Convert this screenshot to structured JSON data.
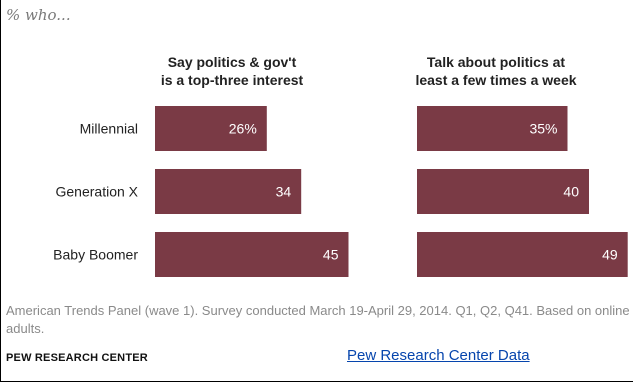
{
  "subtitle": "% who...",
  "panels": [
    {
      "title_line1": "Say politics & gov't",
      "title_line2": "is a top-three interest"
    },
    {
      "title_line1": "Talk about politics  at",
      "title_line2": "least a few times a week"
    }
  ],
  "chart_data": {
    "type": "bar",
    "orientation": "horizontal",
    "categories": [
      "Millennial",
      "Generation X",
      "Baby Boomer"
    ],
    "series": [
      {
        "name": "Say politics & gov't is a top-three interest",
        "values": [
          26,
          34,
          45
        ],
        "labels": [
          "26%",
          "34",
          "45"
        ]
      },
      {
        "name": "Talk about politics at least a few times a week",
        "values": [
          35,
          40,
          49
        ],
        "labels": [
          "35%",
          "40",
          "49"
        ]
      }
    ],
    "unit": "%",
    "bar_color": "#7a3a45"
  },
  "note": "American Trends Panel (wave 1). Survey conducted March 19-April 29, 2014. Q1, Q2, Q41. Based on online adults.",
  "source": "PEW RESEARCH CENTER",
  "link_text": "Pew Research Center Data"
}
